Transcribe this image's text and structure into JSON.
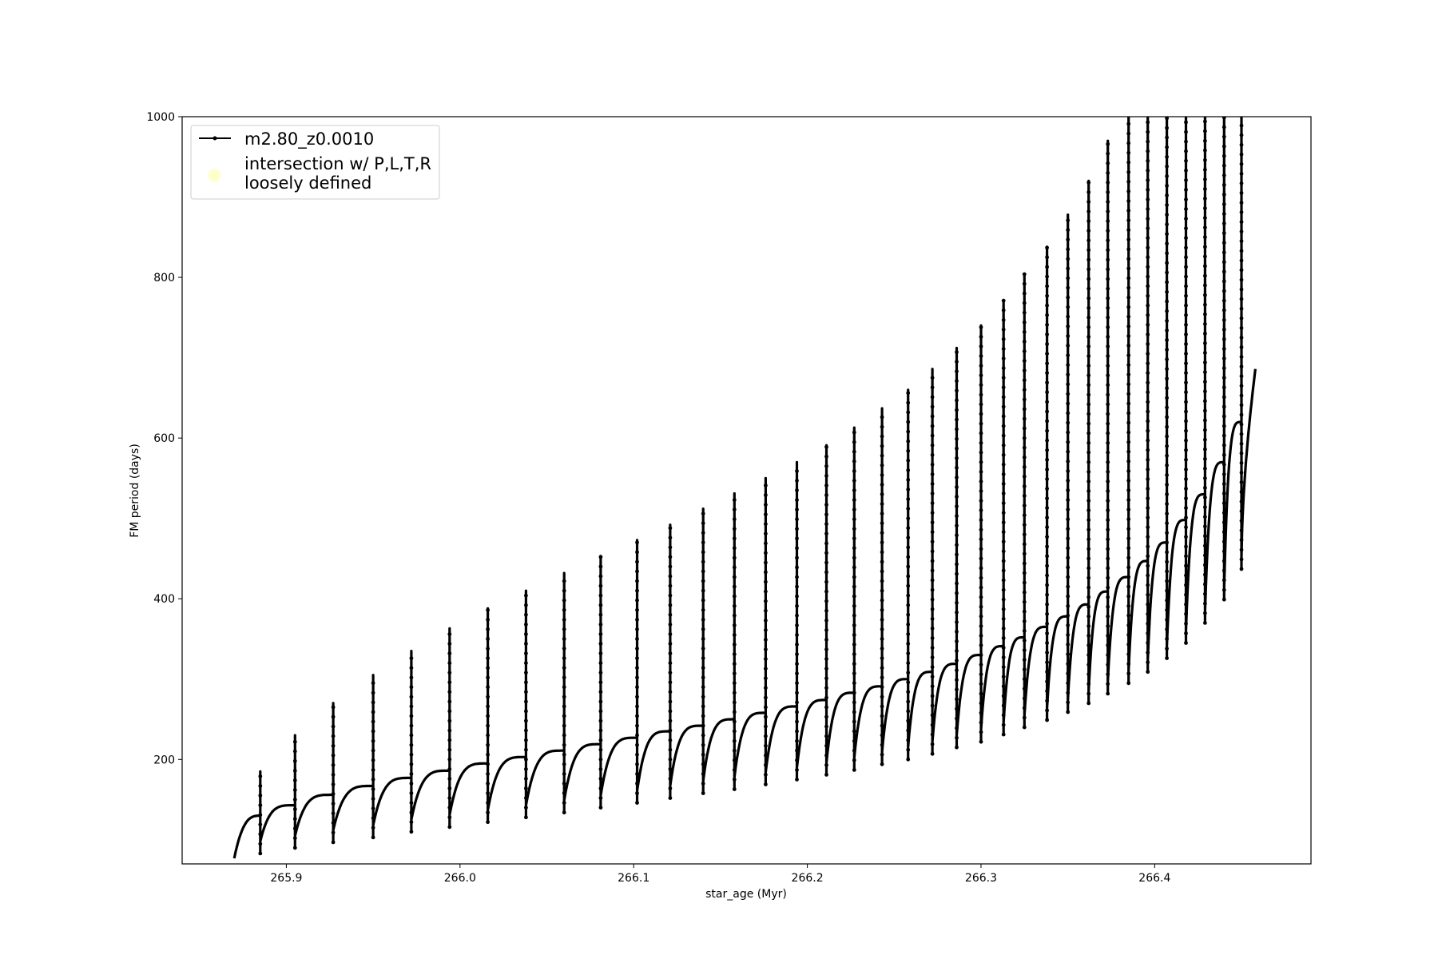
{
  "chart_data": {
    "type": "line",
    "title": "",
    "xlabel": "star_age (Myr)",
    "ylabel": "FM period (days)",
    "xlim": [
      265.84,
      266.49
    ],
    "ylim": [
      70,
      1000
    ],
    "xticks": [
      "265.9",
      "266.0",
      "266.1",
      "266.2",
      "266.3",
      "266.4"
    ],
    "yticks": [
      "200",
      "400",
      "600",
      "800",
      "1000"
    ],
    "grid": false,
    "legend_position": "upper left",
    "legend": [
      {
        "label": "m2.80_z0.0010",
        "marker": "line-dot",
        "color": "#000000"
      },
      {
        "label_line1": "intersection w/ P,L,T,R",
        "label_line2": "loosely defined",
        "marker": "circle",
        "color": "#ffffcc"
      }
    ],
    "series": [
      {
        "name": "m2.80_z0.0010",
        "color": "#000000",
        "start": {
          "x": 265.87,
          "y": 77
        },
        "end": {
          "x": 266.458,
          "y": 686
        },
        "pulses": [
          {
            "x": 265.885,
            "peak": 185,
            "dip": 83,
            "plateau": 130
          },
          {
            "x": 265.905,
            "peak": 230,
            "dip": 90,
            "plateau": 143
          },
          {
            "x": 265.927,
            "peak": 270,
            "dip": 97,
            "plateau": 156
          },
          {
            "x": 265.95,
            "peak": 305,
            "dip": 103,
            "plateau": 167
          },
          {
            "x": 265.972,
            "peak": 335,
            "dip": 110,
            "plateau": 177
          },
          {
            "x": 265.994,
            "peak": 363,
            "dip": 116,
            "plateau": 186
          },
          {
            "x": 266.016,
            "peak": 388,
            "dip": 122,
            "plateau": 195
          },
          {
            "x": 266.038,
            "peak": 410,
            "dip": 128,
            "plateau": 203
          },
          {
            "x": 266.06,
            "peak": 432,
            "dip": 134,
            "plateau": 211
          },
          {
            "x": 266.081,
            "peak": 453,
            "dip": 140,
            "plateau": 219
          },
          {
            "x": 266.102,
            "peak": 473,
            "dip": 146,
            "plateau": 227
          },
          {
            "x": 266.121,
            "peak": 492,
            "dip": 152,
            "plateau": 235
          },
          {
            "x": 266.14,
            "peak": 512,
            "dip": 158,
            "plateau": 242
          },
          {
            "x": 266.158,
            "peak": 531,
            "dip": 163,
            "plateau": 250
          },
          {
            "x": 266.176,
            "peak": 550,
            "dip": 169,
            "plateau": 258
          },
          {
            "x": 266.194,
            "peak": 570,
            "dip": 175,
            "plateau": 266
          },
          {
            "x": 266.211,
            "peak": 591,
            "dip": 181,
            "plateau": 274
          },
          {
            "x": 266.227,
            "peak": 613,
            "dip": 187,
            "plateau": 283
          },
          {
            "x": 266.243,
            "peak": 637,
            "dip": 194,
            "plateau": 291
          },
          {
            "x": 266.258,
            "peak": 660,
            "dip": 200,
            "plateau": 300
          },
          {
            "x": 266.272,
            "peak": 686,
            "dip": 207,
            "plateau": 309
          },
          {
            "x": 266.286,
            "peak": 712,
            "dip": 215,
            "plateau": 319
          },
          {
            "x": 266.3,
            "peak": 740,
            "dip": 222,
            "plateau": 330
          },
          {
            "x": 266.313,
            "peak": 771,
            "dip": 231,
            "plateau": 341
          },
          {
            "x": 266.325,
            "peak": 804,
            "dip": 240,
            "plateau": 352
          },
          {
            "x": 266.338,
            "peak": 838,
            "dip": 249,
            "plateau": 365
          },
          {
            "x": 266.35,
            "peak": 878,
            "dip": 259,
            "plateau": 378
          },
          {
            "x": 266.362,
            "peak": 920,
            "dip": 270,
            "plateau": 393
          },
          {
            "x": 266.373,
            "peak": 970,
            "dip": 282,
            "plateau": 409
          },
          {
            "x": 266.385,
            "peak": 1000,
            "dip": 295,
            "plateau": 427
          },
          {
            "x": 266.396,
            "peak": 1000,
            "dip": 309,
            "plateau": 447
          },
          {
            "x": 266.407,
            "peak": 1000,
            "dip": 326,
            "plateau": 470
          },
          {
            "x": 266.418,
            "peak": 1000,
            "dip": 345,
            "plateau": 498
          },
          {
            "x": 266.429,
            "peak": 1000,
            "dip": 370,
            "plateau": 530
          },
          {
            "x": 266.44,
            "peak": 1000,
            "dip": 399,
            "plateau": 570
          },
          {
            "x": 266.45,
            "peak": 1000,
            "dip": 437,
            "plateau": 620
          }
        ]
      }
    ]
  }
}
